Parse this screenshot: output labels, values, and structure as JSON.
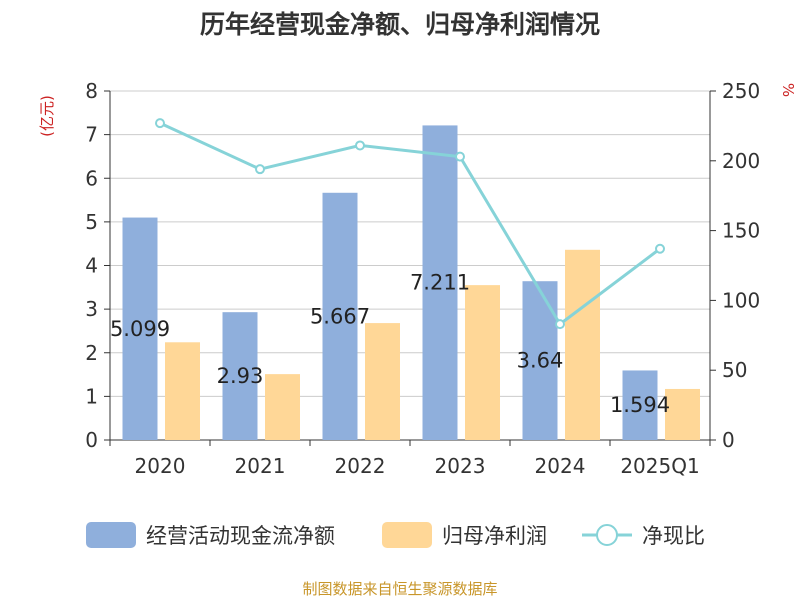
{
  "colors": {
    "bar_cashflow": "#8FAFDC",
    "bar_profit": "#FFD797",
    "line_ratio": "#86D3D8",
    "axis": "#333333",
    "grid": "#cccccc",
    "unit_red": "#CC2222",
    "source_text": "#C8962A"
  },
  "chart_data": {
    "type": "bar",
    "title": "历年经营现金净额、归母净利润情况",
    "categories": [
      "2020",
      "2021",
      "2022",
      "2023",
      "2024",
      "2025Q1"
    ],
    "y_left_label": "(亿元)",
    "y_right_label": "%",
    "ylim_left": [
      0,
      8
    ],
    "ylim_right": [
      0,
      250
    ],
    "y_left_ticks": [
      0,
      1,
      2,
      3,
      4,
      5,
      6,
      7,
      8
    ],
    "y_right_ticks": [
      0,
      50,
      100,
      150,
      200,
      250
    ],
    "grid": true,
    "legend_position": "bottom",
    "series": [
      {
        "name": "经营活动现金流净额",
        "type": "bar",
        "axis": "left",
        "values": [
          5.099,
          2.93,
          5.667,
          7.211,
          3.64,
          1.594
        ],
        "data_labels": [
          "5.099",
          "2.93",
          "5.667",
          "7.211",
          "3.64",
          "1.594"
        ]
      },
      {
        "name": "归母净利润",
        "type": "bar",
        "axis": "left",
        "values": [
          2.24,
          1.51,
          2.68,
          3.55,
          4.36,
          1.17
        ]
      },
      {
        "name": "净现比",
        "type": "line",
        "axis": "right",
        "values": [
          227,
          194,
          211,
          203,
          83,
          137
        ]
      }
    ]
  },
  "footer": {
    "source": "制图数据来自恒生聚源数据库"
  }
}
